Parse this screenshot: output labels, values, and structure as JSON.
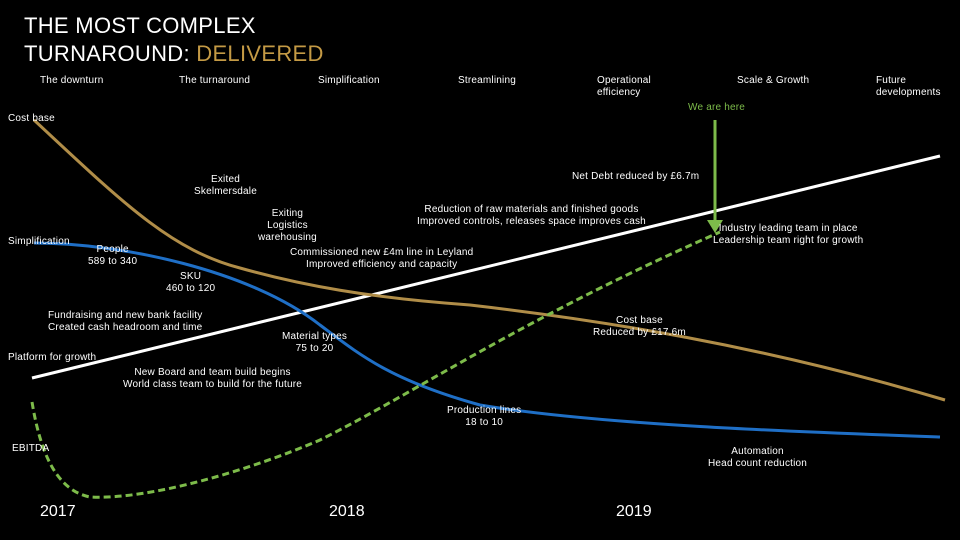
{
  "title": {
    "line1": "THE MOST COMPLEX",
    "line2_prefix": "TURNAROUND: ",
    "line2_highlight": "DELIVERED"
  },
  "phases": [
    "The downturn",
    "The turnaround",
    "Simplification",
    "Streamlining",
    "Operational\nefficiency",
    "Scale & Growth",
    "Future\ndevelopments"
  ],
  "marker": {
    "label": "We are here"
  },
  "series_labels": {
    "cost_base": "Cost base",
    "simplification": "Simplification",
    "platform": "Platform for growth",
    "ebitda": "EBITDA"
  },
  "annotations": {
    "net_debt": "Net Debt reduced by £6.7m",
    "exited": "Exited\nSkelmersdale",
    "logistics": "Exiting\nLogistics\nwarehousing",
    "raw_materials": "Reduction of raw materials and finished goods\nImproved controls, releases space improves cash",
    "industry": "Industry leading team in place\nLeadership team right for growth",
    "people": "People\n589 to 340",
    "leyland": "Commissioned new £4m line in Leyland\nImproved efficiency and capacity",
    "sku": "SKU\n460 to 120",
    "fundraising": "Fundraising and new bank facility\nCreated cash headroom and time",
    "cost_reduced": "Cost base\nReduced by £17.6m",
    "material_types": "Material types\n75 to 20",
    "new_board": "New Board and team build begins\nWorld class team to build for the future",
    "production_lines": "Production lines\n18 to 10",
    "automation": "Automation\nHead count reduction"
  },
  "years": [
    "2017",
    "2018",
    "2019"
  ],
  "colors": {
    "background": "#000000",
    "cost_base": "#b08d48",
    "simplification": "#1f6fc6",
    "platform": "#ffffff",
    "ebitda": "#7dbb4a",
    "highlight": "#c49a45"
  }
}
